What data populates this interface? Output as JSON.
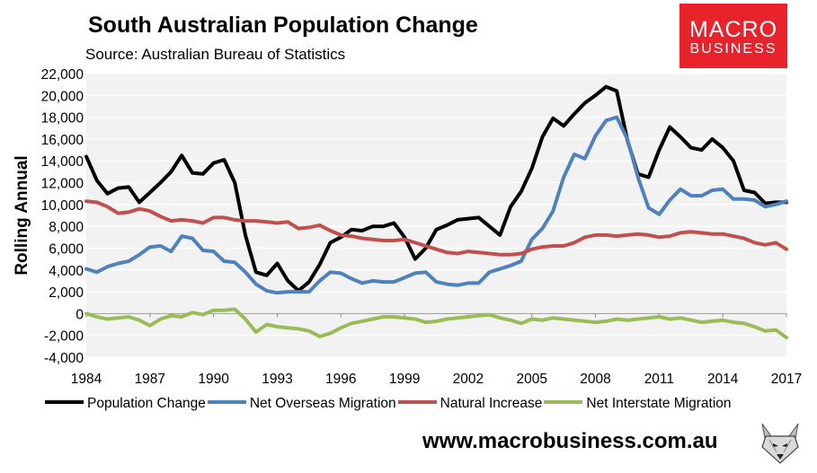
{
  "header": {
    "title": "South Australian Population Change",
    "subtitle": "Source: Australian Bureau of Statistics"
  },
  "logo": {
    "line1": "MACRO",
    "line2": "BUSINESS"
  },
  "footer": {
    "url": "www.macrobusiness.com.au"
  },
  "colors": {
    "population_change": "#000000",
    "net_overseas_migration": "#4f81bd",
    "natural_increase": "#c0504d",
    "net_interstate_migration": "#9bbb59",
    "brand_red": "#e8232b",
    "plot_background": "#f2f2f2"
  },
  "chart_data": {
    "type": "line",
    "title": "South Australian Population Change",
    "xlabel": "",
    "ylabel": "Rolling Annual",
    "xlim": [
      1984,
      2017
    ],
    "ylim": [
      -4000,
      22000
    ],
    "x_ticks": [
      "1984",
      "1987",
      "1990",
      "1993",
      "1996",
      "1999",
      "2002",
      "2005",
      "2008",
      "2011",
      "2014",
      "2017"
    ],
    "y_ticks": [
      "22,000",
      "20,000",
      "18,000",
      "16,000",
      "14,000",
      "12,000",
      "10,000",
      "8,000",
      "6,000",
      "4,000",
      "2,000",
      "0",
      "-2,000",
      "-4,000"
    ],
    "legend_position": "bottom",
    "series": [
      {
        "name": "Population Change",
        "x": [
          1984,
          1984.5,
          1985,
          1985.5,
          1986,
          1986.5,
          1987,
          1987.5,
          1988,
          1988.5,
          1989,
          1989.5,
          1990,
          1990.5,
          1991,
          1991.5,
          1992,
          1992.5,
          1993,
          1993.5,
          1994,
          1994.5,
          1995,
          1995.5,
          1996,
          1996.5,
          1997,
          1997.5,
          1998,
          1998.5,
          1999,
          1999.5,
          2000,
          2000.5,
          2001,
          2001.5,
          2002,
          2002.5,
          2003,
          2003.5,
          2004,
          2004.5,
          2005,
          2005.5,
          2006,
          2006.5,
          2007,
          2007.5,
          2008,
          2008.5,
          2009,
          2009.5,
          2010,
          2010.5,
          2011,
          2011.5,
          2012,
          2012.5,
          2013,
          2013.5,
          2014,
          2014.5,
          2015,
          2015.5,
          2016,
          2016.5,
          2017
        ],
        "values": [
          14400,
          12200,
          11000,
          11500,
          11600,
          10200,
          11100,
          12000,
          13000,
          14500,
          12900,
          12800,
          13800,
          14100,
          12000,
          7200,
          3800,
          3500,
          4600,
          3000,
          2100,
          2900,
          4500,
          6500,
          7000,
          7700,
          7600,
          8000,
          8000,
          8300,
          7000,
          5000,
          6000,
          7700,
          8100,
          8600,
          8700,
          8800,
          8000,
          7200,
          9800,
          11200,
          13300,
          16200,
          17900,
          17200,
          18300,
          19300,
          20000,
          20800,
          20400,
          15900,
          12800,
          12500,
          15000,
          17100,
          16200,
          15200,
          15000,
          16000,
          15200,
          14000,
          11300,
          11100,
          10100,
          10200,
          10200
        ]
      },
      {
        "name": "Net Overseas Migration",
        "x": [
          1984,
          1984.5,
          1985,
          1985.5,
          1986,
          1986.5,
          1987,
          1987.5,
          1988,
          1988.5,
          1989,
          1989.5,
          1990,
          1990.5,
          1991,
          1991.5,
          1992,
          1992.5,
          1993,
          1993.5,
          1994,
          1994.5,
          1995,
          1995.5,
          1996,
          1996.5,
          1997,
          1997.5,
          1998,
          1998.5,
          1999,
          1999.5,
          2000,
          2000.5,
          2001,
          2001.5,
          2002,
          2002.5,
          2003,
          2003.5,
          2004,
          2004.5,
          2005,
          2005.5,
          2006,
          2006.5,
          2007,
          2007.5,
          2008,
          2008.5,
          2009,
          2009.5,
          2010,
          2010.5,
          2011,
          2011.5,
          2012,
          2012.5,
          2013,
          2013.5,
          2014,
          2014.5,
          2015,
          2015.5,
          2016,
          2016.5,
          2017
        ],
        "values": [
          4100,
          3800,
          4300,
          4600,
          4800,
          5400,
          6100,
          6200,
          5700,
          7100,
          6900,
          5800,
          5700,
          4800,
          4700,
          3800,
          2700,
          2100,
          1900,
          2000,
          2000,
          2000,
          3000,
          3800,
          3700,
          3200,
          2800,
          3000,
          2900,
          2900,
          3300,
          3700,
          3800,
          2900,
          2700,
          2600,
          2800,
          2800,
          3800,
          4100,
          4400,
          4800,
          6800,
          7800,
          9400,
          12500,
          14600,
          14200,
          16300,
          17700,
          18000,
          16000,
          12500,
          9700,
          9100,
          10400,
          11400,
          10800,
          10800,
          11300,
          11400,
          10500,
          10500,
          10400,
          9800,
          10000,
          10300
        ]
      },
      {
        "name": "Natural Increase",
        "x": [
          1984,
          1984.5,
          1985,
          1985.5,
          1986,
          1986.5,
          1987,
          1987.5,
          1988,
          1988.5,
          1989,
          1989.5,
          1990,
          1990.5,
          1991,
          1991.5,
          1992,
          1992.5,
          1993,
          1993.5,
          1994,
          1994.5,
          1995,
          1995.5,
          1996,
          1996.5,
          1997,
          1997.5,
          1998,
          1998.5,
          1999,
          1999.5,
          2000,
          2000.5,
          2001,
          2001.5,
          2002,
          2002.5,
          2003,
          2003.5,
          2004,
          2004.5,
          2005,
          2005.5,
          2006,
          2006.5,
          2007,
          2007.5,
          2008,
          2008.5,
          2009,
          2009.5,
          2010,
          2010.5,
          2011,
          2011.5,
          2012,
          2012.5,
          2013,
          2013.5,
          2014,
          2014.5,
          2015,
          2015.5,
          2016,
          2016.5,
          2017
        ],
        "values": [
          10300,
          10200,
          9800,
          9200,
          9300,
          9600,
          9400,
          8900,
          8500,
          8600,
          8500,
          8300,
          8800,
          8800,
          8600,
          8500,
          8500,
          8400,
          8300,
          8400,
          7800,
          7900,
          8100,
          7600,
          7200,
          7100,
          6900,
          6800,
          6700,
          6700,
          6800,
          6500,
          6200,
          5900,
          5600,
          5500,
          5700,
          5600,
          5500,
          5400,
          5400,
          5500,
          5900,
          6100,
          6200,
          6200,
          6500,
          7000,
          7200,
          7200,
          7100,
          7200,
          7300,
          7200,
          7000,
          7100,
          7400,
          7500,
          7400,
          7300,
          7300,
          7100,
          6900,
          6500,
          6300,
          6500,
          5900
        ]
      },
      {
        "name": "Net Interstate Migration",
        "x": [
          1984,
          1984.5,
          1985,
          1985.5,
          1986,
          1986.5,
          1987,
          1987.5,
          1988,
          1988.5,
          1989,
          1989.5,
          1990,
          1990.5,
          1991,
          1991.5,
          1992,
          1992.5,
          1993,
          1993.5,
          1994,
          1994.5,
          1995,
          1995.5,
          1996,
          1996.5,
          1997,
          1997.5,
          1998,
          1998.5,
          1999,
          1999.5,
          2000,
          2000.5,
          2001,
          2001.5,
          2002,
          2002.5,
          2003,
          2003.5,
          2004,
          2004.5,
          2005,
          2005.5,
          2006,
          2006.5,
          2007,
          2007.5,
          2008,
          2008.5,
          2009,
          2009.5,
          2010,
          2010.5,
          2011,
          2011.5,
          2012,
          2012.5,
          2013,
          2013.5,
          2014,
          2014.5,
          2015,
          2015.5,
          2016,
          2016.5,
          2017
        ],
        "values": [
          0,
          -300,
          -500,
          -400,
          -300,
          -600,
          -1100,
          -500,
          -200,
          -300,
          100,
          -100,
          300,
          300,
          400,
          -500,
          -1700,
          -1000,
          -1200,
          -1300,
          -1400,
          -1600,
          -2100,
          -1800,
          -1300,
          -900,
          -700,
          -500,
          -300,
          -300,
          -400,
          -500,
          -800,
          -700,
          -500,
          -400,
          -300,
          -200,
          -100,
          -400,
          -600,
          -900,
          -500,
          -600,
          -400,
          -500,
          -600,
          -700,
          -800,
          -700,
          -500,
          -600,
          -500,
          -400,
          -300,
          -500,
          -400,
          -600,
          -800,
          -700,
          -600,
          -800,
          -900,
          -1200,
          -1600,
          -1500,
          -2200
        ]
      }
    ]
  }
}
